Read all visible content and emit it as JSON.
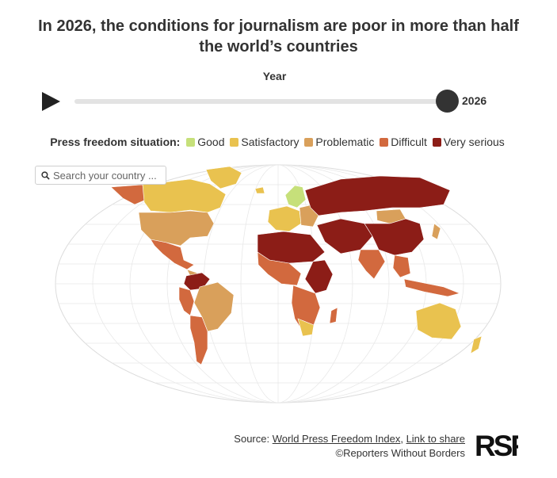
{
  "title": "In 2026, the conditions for journalism are poor in more than half the world’s countries",
  "slider": {
    "label": "Year",
    "value": "2026",
    "position": 1.0
  },
  "legend": {
    "title": "Press freedom situation:",
    "items": [
      {
        "label": "Good",
        "color": "#c6e07a"
      },
      {
        "label": "Satisfactory",
        "color": "#e9c24f"
      },
      {
        "label": "Problematic",
        "color": "#d9a05b"
      },
      {
        "label": "Difficult",
        "color": "#d2693e"
      },
      {
        "label": "Very serious",
        "color": "#8c1d17"
      }
    ]
  },
  "search": {
    "placeholder": "Search your country ..."
  },
  "source": {
    "prefix": "Source: ",
    "link1": "World Press Freedom Index",
    "separator": ", ",
    "link2": "Link to share",
    "credit": "©Reporters Without Borders"
  },
  "icons": {
    "play": "play-icon",
    "search": "search-icon",
    "logo": "rsf-logo"
  },
  "logo_text": "RSF"
}
